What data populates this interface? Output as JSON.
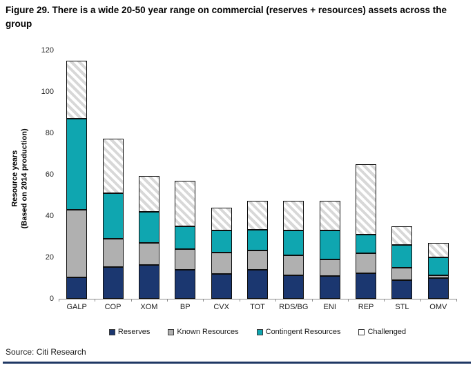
{
  "title": "Figure 29. There is a wide 20-50 year range on commercial (reserves + resources) assets across the group",
  "source": "Source: Citi Research",
  "colors": {
    "reserves": "#1B3770",
    "known_resources": "#B0B0B0",
    "contingent_resources": "#0FA6B0",
    "challenged_stripe": "#D8D8D8",
    "axis": "#8C8C8C",
    "bar_outline": "#0D0D0D",
    "bottom_rule": "#1F3864"
  },
  "chart_data": {
    "type": "bar",
    "stacked": true,
    "title": "Figure 29. There is a wide 20-50 year range on commercial (reserves + resources) assets across the group",
    "categories": [
      "GALP",
      "COP",
      "XOM",
      "BP",
      "CVX",
      "TOT",
      "RDS/BG",
      "ENI",
      "REP",
      "STL",
      "OMV"
    ],
    "series": [
      {
        "name": "Reserves",
        "color": "#1B3770",
        "values": [
          10.5,
          15.5,
          16.5,
          14,
          12,
          14,
          11.5,
          11,
          12.5,
          9,
          10
        ]
      },
      {
        "name": "Known Resources",
        "color": "#B0B0B0",
        "values": [
          32.5,
          13.5,
          10.5,
          10,
          10.5,
          9.5,
          9.5,
          8,
          9.5,
          6,
          1.5
        ]
      },
      {
        "name": "Contingent Resources",
        "color": "#0FA6B0",
        "values": [
          44,
          22,
          15,
          11,
          10.5,
          10,
          12,
          14,
          9,
          11,
          8.5
        ]
      },
      {
        "name": "Challenged",
        "color": "hatch",
        "values": [
          28,
          26.5,
          17.5,
          22,
          11,
          14,
          14.5,
          14.5,
          34,
          9,
          7
        ]
      }
    ],
    "totals": [
      115,
      77.5,
      59.5,
      57,
      44,
      47.5,
      47.5,
      47.5,
      65,
      35,
      27
    ],
    "xlabel": "",
    "ylabel_line1": "Resource years",
    "ylabel_line2": "(Based on 2014 production)",
    "yticks": [
      0,
      20,
      40,
      60,
      80,
      100,
      120
    ],
    "ylim": [
      0,
      120
    ],
    "grid": false,
    "legend_position": "bottom"
  }
}
